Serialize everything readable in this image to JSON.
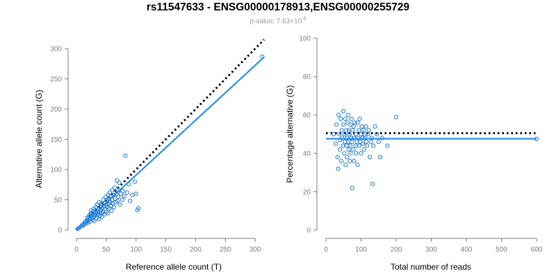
{
  "figure": {
    "title": "rs11547633 - ENSG00000178913,ENSG00000255729",
    "subtitle_prefix": "p-value: 7.63×10",
    "subtitle_exp": "-6"
  },
  "colors": {
    "points": "#1f78d0",
    "fit": "#2b8ee8",
    "reference": "#000000",
    "axis": "#7a7a7a"
  },
  "chart_data": [
    {
      "type": "scatter",
      "name": "allele-counts",
      "xlabel": "Reference allele count (T)",
      "ylabel": "Alternative allele count (G)",
      "xlim": [
        0,
        315
      ],
      "ylim": [
        0,
        300
      ],
      "xticks": [
        0,
        50,
        100,
        150,
        200,
        250,
        300
      ],
      "yticks": [
        0,
        50,
        100,
        150,
        200,
        250,
        300
      ],
      "reference_line": {
        "style": "dotted",
        "x": [
          0,
          315
        ],
        "y": [
          0,
          315
        ]
      },
      "fit_line": {
        "x": [
          0,
          315
        ],
        "y": [
          0,
          286
        ]
      },
      "points": [
        [
          2,
          2
        ],
        [
          5,
          4
        ],
        [
          8,
          6
        ],
        [
          10,
          9
        ],
        [
          12,
          8
        ],
        [
          14,
          10
        ],
        [
          15,
          14
        ],
        [
          16,
          12
        ],
        [
          18,
          15
        ],
        [
          18,
          20
        ],
        [
          19,
          12
        ],
        [
          20,
          17
        ],
        [
          21,
          22
        ],
        [
          22,
          18
        ],
        [
          22,
          25
        ],
        [
          23,
          14
        ],
        [
          24,
          28
        ],
        [
          25,
          20
        ],
        [
          25,
          32
        ],
        [
          26,
          24
        ],
        [
          27,
          17
        ],
        [
          28,
          30
        ],
        [
          28,
          22
        ],
        [
          29,
          35
        ],
        [
          30,
          26
        ],
        [
          30,
          15
        ],
        [
          31,
          32
        ],
        [
          32,
          24
        ],
        [
          33,
          28
        ],
        [
          33,
          38
        ],
        [
          34,
          20
        ],
        [
          35,
          30
        ],
        [
          35,
          42
        ],
        [
          36,
          26
        ],
        [
          37,
          35
        ],
        [
          38,
          18
        ],
        [
          38,
          46
        ],
        [
          39,
          30
        ],
        [
          40,
          24
        ],
        [
          40,
          38
        ],
        [
          41,
          33
        ],
        [
          42,
          44
        ],
        [
          42,
          28
        ],
        [
          43,
          22
        ],
        [
          44,
          36
        ],
        [
          45,
          50
        ],
        [
          45,
          30
        ],
        [
          46,
          40
        ],
        [
          47,
          26
        ],
        [
          48,
          45
        ],
        [
          48,
          35
        ],
        [
          49,
          55
        ],
        [
          50,
          42
        ],
        [
          50,
          30
        ],
        [
          51,
          48
        ],
        [
          52,
          38
        ],
        [
          53,
          58
        ],
        [
          53,
          28
        ],
        [
          54,
          44
        ],
        [
          55,
          52
        ],
        [
          55,
          36
        ],
        [
          56,
          62
        ],
        [
          57,
          46
        ],
        [
          58,
          40
        ],
        [
          58,
          55
        ],
        [
          59,
          32
        ],
        [
          60,
          50
        ],
        [
          60,
          66
        ],
        [
          61,
          44
        ],
        [
          62,
          58
        ],
        [
          63,
          38
        ],
        [
          64,
          70
        ],
        [
          65,
          52
        ],
        [
          66,
          46
        ],
        [
          67,
          60
        ],
        [
          68,
          82
        ],
        [
          69,
          48
        ],
        [
          70,
          55
        ],
        [
          71,
          66
        ],
        [
          72,
          78
        ],
        [
          73,
          42
        ],
        [
          75,
          60
        ],
        [
          77,
          50
        ],
        [
          78,
          65
        ],
        [
          80,
          56
        ],
        [
          82,
          123
        ],
        [
          85,
          62
        ],
        [
          88,
          76
        ],
        [
          90,
          48
        ],
        [
          94,
          58
        ],
        [
          98,
          80
        ],
        [
          100,
          60
        ],
        [
          102,
          33
        ],
        [
          104,
          36
        ],
        [
          312,
          287
        ]
      ]
    },
    {
      "type": "scatter",
      "name": "percentage-alternative",
      "xlabel": "Total number of reads",
      "ylabel": "Percentage alternative (G)",
      "xlim": [
        0,
        600
      ],
      "ylim": [
        0,
        100
      ],
      "xticks": [
        0,
        100,
        200,
        300,
        400,
        500,
        600
      ],
      "yticks": [
        0,
        20,
        40,
        60,
        80,
        100
      ],
      "reference_line": {
        "style": "dotted",
        "x": [
          0,
          600
        ],
        "y": [
          50.5,
          50.5
        ]
      },
      "fit_line": {
        "x": [
          0,
          600
        ],
        "y": [
          47.6,
          47.6
        ]
      },
      "points": [
        [
          22,
          50
        ],
        [
          28,
          45
        ],
        [
          30,
          55
        ],
        [
          33,
          38
        ],
        [
          35,
          32
        ],
        [
          36,
          60
        ],
        [
          38,
          50
        ],
        [
          40,
          47
        ],
        [
          40,
          42
        ],
        [
          42,
          58
        ],
        [
          44,
          36
        ],
        [
          45,
          52
        ],
        [
          46,
          48
        ],
        [
          48,
          44
        ],
        [
          50,
          62
        ],
        [
          50,
          55
        ],
        [
          52,
          40
        ],
        [
          53,
          50
        ],
        [
          54,
          46
        ],
        [
          55,
          58
        ],
        [
          56,
          34
        ],
        [
          58,
          52
        ],
        [
          59,
          44
        ],
        [
          60,
          48
        ],
        [
          60,
          38
        ],
        [
          62,
          56
        ],
        [
          63,
          60
        ],
        [
          64,
          46
        ],
        [
          65,
          42
        ],
        [
          66,
          52
        ],
        [
          67,
          50
        ],
        [
          68,
          36
        ],
        [
          69,
          44
        ],
        [
          70,
          55
        ],
        [
          70,
          40
        ],
        [
          72,
          48
        ],
        [
          73,
          58
        ],
        [
          74,
          46
        ],
        [
          75,
          22
        ],
        [
          76,
          52
        ],
        [
          78,
          42
        ],
        [
          79,
          54
        ],
        [
          80,
          48
        ],
        [
          80,
          36
        ],
        [
          82,
          56
        ],
        [
          84,
          44
        ],
        [
          85,
          50
        ],
        [
          86,
          40
        ],
        [
          88,
          46
        ],
        [
          90,
          56
        ],
        [
          90,
          34
        ],
        [
          92,
          48
        ],
        [
          94,
          52
        ],
        [
          95,
          44
        ],
        [
          96,
          58
        ],
        [
          98,
          46
        ],
        [
          100,
          50
        ],
        [
          100,
          40
        ],
        [
          102,
          54
        ],
        [
          104,
          48
        ],
        [
          105,
          45
        ],
        [
          107,
          52
        ],
        [
          108,
          42
        ],
        [
          110,
          50
        ],
        [
          112,
          48
        ],
        [
          114,
          54
        ],
        [
          115,
          46
        ],
        [
          117,
          44
        ],
        [
          120,
          50
        ],
        [
          122,
          52
        ],
        [
          125,
          38
        ],
        [
          128,
          46
        ],
        [
          130,
          48
        ],
        [
          133,
          24
        ],
        [
          135,
          44
        ],
        [
          140,
          54
        ],
        [
          145,
          50
        ],
        [
          150,
          46
        ],
        [
          155,
          38
        ],
        [
          160,
          48
        ],
        [
          175,
          44
        ],
        [
          200,
          59
        ],
        [
          600,
          47.5
        ]
      ]
    }
  ]
}
